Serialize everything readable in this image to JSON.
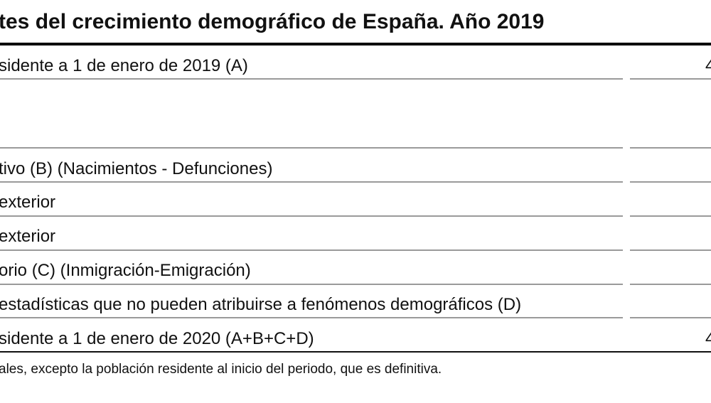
{
  "title": "tes del crecimiento demográfico de España. Año 2019",
  "rows": [
    {
      "label": "sidente a 1 de enero de 2019 (A)",
      "value": "4"
    },
    {
      "label": "",
      "value": ""
    },
    {
      "label": "tivo (B) (Nacimientos - Defunciones)",
      "value": ""
    },
    {
      "label": "exterior",
      "value": ""
    },
    {
      "label": "exterior",
      "value": ""
    },
    {
      "label": "orio (C) (Inmigración-Emigración)",
      "value": ""
    },
    {
      "label": " estadísticas que no pueden atribuirse a fenómenos demográficos (D)",
      "value": ""
    },
    {
      "label": "sidente a 1 de enero de 2020 (A+B+C+D)",
      "value": "4"
    }
  ],
  "footnote": "ales, excepto la población residente al inicio del periodo, que es definitiva."
}
